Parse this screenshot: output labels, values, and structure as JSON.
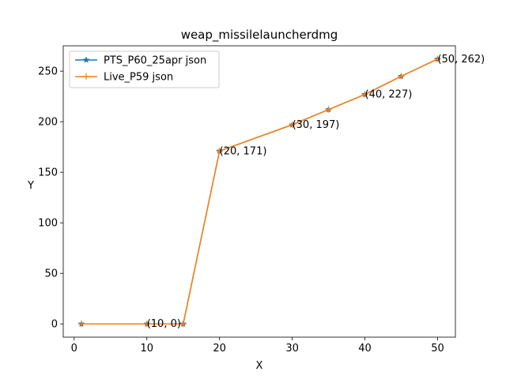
{
  "chart_data": {
    "type": "line",
    "title": "weap_missilelauncherdmg",
    "xlabel": "X",
    "ylabel": "Y",
    "xlim": [
      -1.5,
      52.45
    ],
    "ylim": [
      -13.1,
      275.1
    ],
    "xticks": [
      0,
      10,
      20,
      30,
      40,
      50
    ],
    "yticks": [
      0,
      50,
      100,
      150,
      200,
      250
    ],
    "grid": false,
    "legend_position": "upper left",
    "series": [
      {
        "name": "PTS_P60_25apr json",
        "color": "#1f77b4",
        "marker": "star",
        "x": [
          1,
          10,
          15,
          20,
          30,
          35,
          40,
          45,
          50
        ],
        "y": [
          0,
          0,
          0,
          171,
          197,
          212,
          227,
          245,
          262
        ]
      },
      {
        "name": "Live_P59 json",
        "color": "#ff7f0e",
        "marker": "plus",
        "x": [
          1,
          10,
          15,
          20,
          30,
          35,
          40,
          45,
          50
        ],
        "y": [
          0,
          0,
          0,
          171,
          197,
          212,
          227,
          245,
          262
        ]
      }
    ],
    "annotations": [
      {
        "x": 10,
        "y": 0,
        "text": "(10, 0)"
      },
      {
        "x": 20,
        "y": 171,
        "text": "(20, 171)"
      },
      {
        "x": 30,
        "y": 197,
        "text": "(30, 197)"
      },
      {
        "x": 40,
        "y": 227,
        "text": "(40, 227)"
      },
      {
        "x": 50,
        "y": 262,
        "text": "(50, 262)"
      }
    ]
  }
}
